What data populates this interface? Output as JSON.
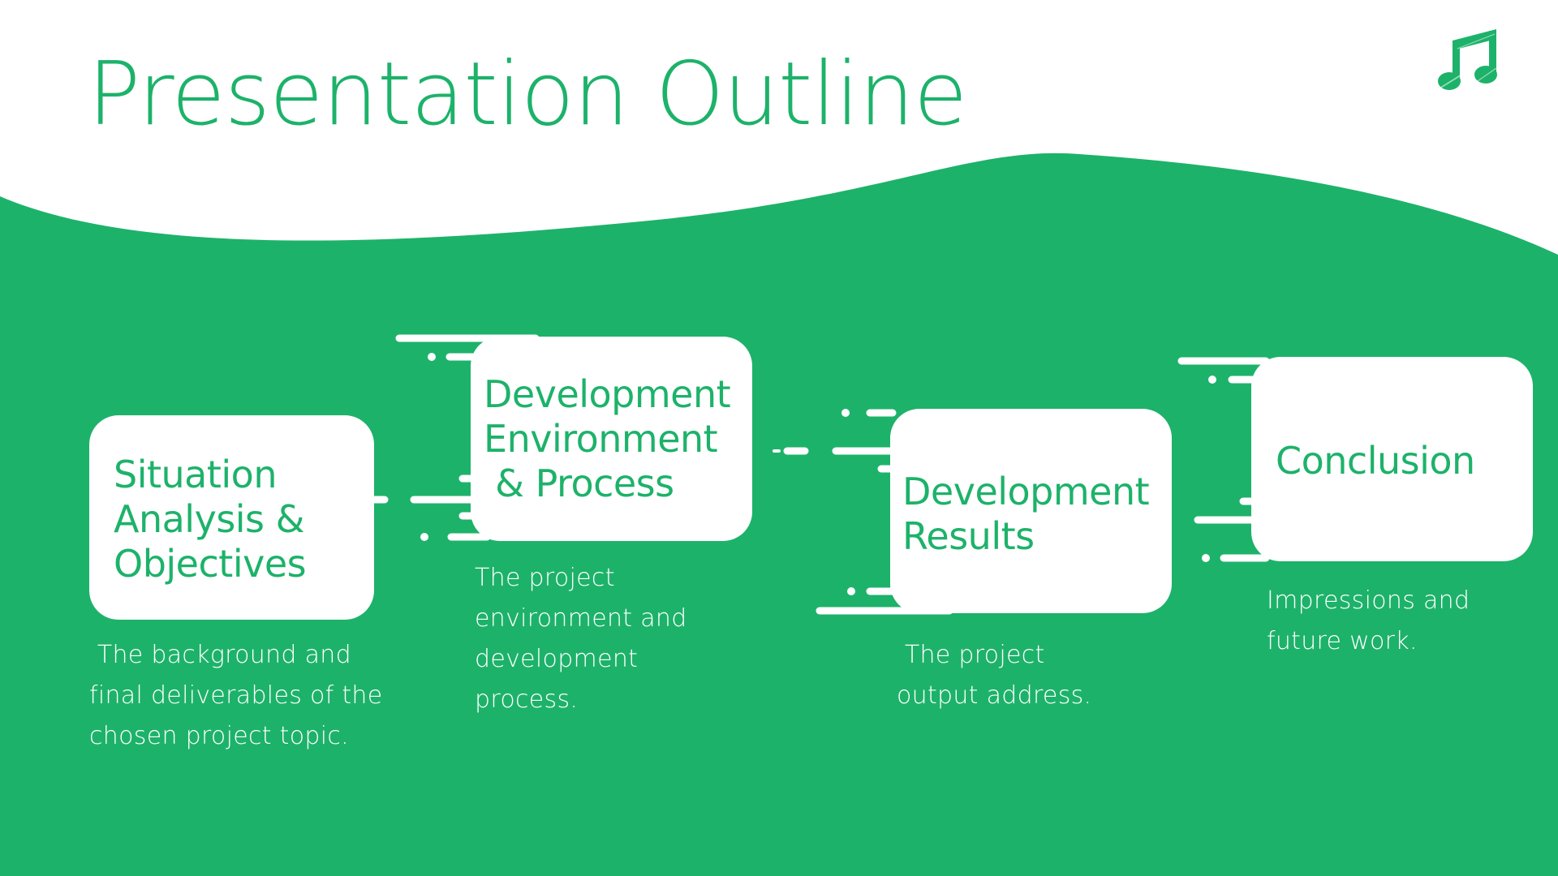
{
  "slide": {
    "title": "Presentation Outline",
    "colors": {
      "accent": "#1db26a",
      "background": "#ffffff",
      "card": "#ffffff",
      "text_on_accent": "#ffffff"
    },
    "logo_icon": "music-note-icon"
  },
  "steps": [
    {
      "title": "Situation\nAnalysis &\nObjectives",
      "description": " The background and\nfinal deliverables of the\nchosen project topic."
    },
    {
      "title": "Development\nEnvironment\n & Process",
      "description": "The project\nenvironment and\ndevelopment\nprocess."
    },
    {
      "title": "Development\nResults",
      "description": " The project\noutput address."
    },
    {
      "title": "Conclusion",
      "description": "Impressions and\nfuture work."
    }
  ]
}
